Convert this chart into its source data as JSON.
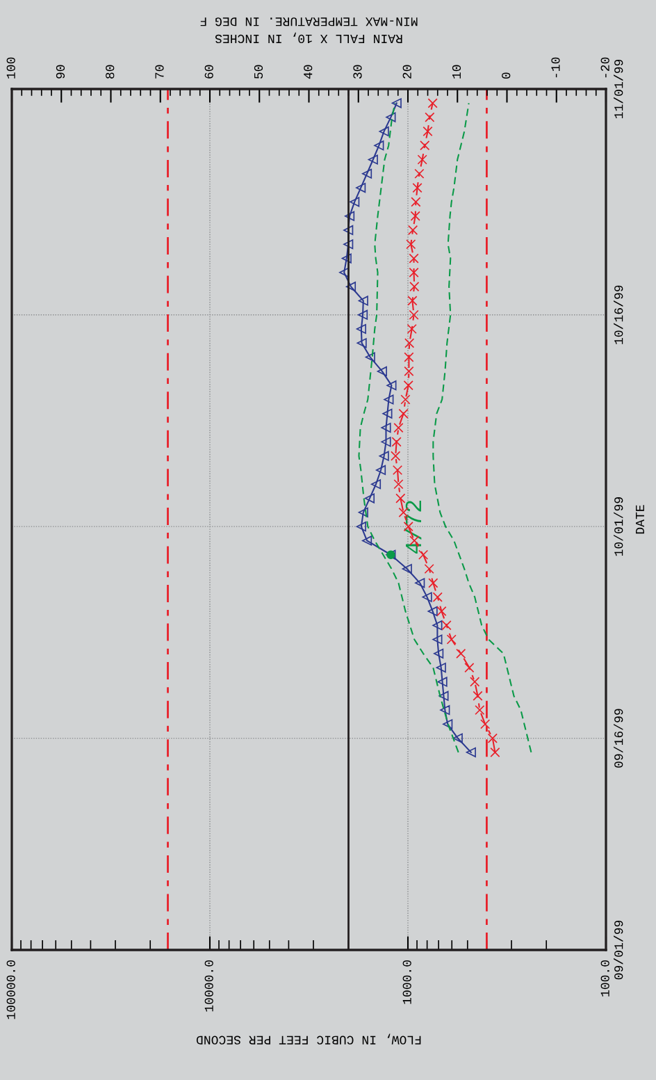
{
  "chart_data": {
    "type": "line",
    "orientation": "horizontal",
    "ylabel": "DATE",
    "xlabel": "FLOW, IN CUBIC FEET PER SECOND",
    "x2label": "RAIN FALL X 10, IN INCHES\nMIN-MAX TEMPERATURE. IN DEG F",
    "x": [
      "1999-09-15",
      "1999-09-16",
      "1999-09-17",
      "1999-09-18",
      "1999-09-19",
      "1999-09-20",
      "1999-09-21",
      "1999-09-22",
      "1999-09-23",
      "1999-09-24",
      "1999-09-25",
      "1999-09-26",
      "1999-09-27",
      "1999-09-28",
      "1999-09-29",
      "1999-09-30",
      "1999-10-01",
      "1999-10-02",
      "1999-10-03",
      "1999-10-04",
      "1999-10-05",
      "1999-10-06",
      "1999-10-07",
      "1999-10-08",
      "1999-10-09",
      "1999-10-10",
      "1999-10-11",
      "1999-10-12",
      "1999-10-13",
      "1999-10-14",
      "1999-10-15",
      "1999-10-16",
      "1999-10-17",
      "1999-10-18",
      "1999-10-19",
      "1999-10-20",
      "1999-10-21",
      "1999-10-22",
      "1999-10-23",
      "1999-10-24",
      "1999-10-25",
      "1999-10-26",
      "1999-10-27",
      "1999-10-28",
      "1999-10-29",
      "1999-10-30",
      "1999-10-31"
    ],
    "series": [
      {
        "color": "#2b3990",
        "marker": "triangle",
        "line_style": "solid",
        "values": [
          480,
          560,
          630,
          650,
          660,
          670,
          680,
          700,
          710,
          710,
          750,
          800,
          870,
          1010,
          1220,
          1610,
          1720,
          1680,
          1560,
          1450,
          1370,
          1320,
          1290,
          1290,
          1270,
          1250,
          1210,
          1350,
          1550,
          1710,
          1720,
          1690,
          1680,
          1940,
          2100,
          2040,
          2000,
          2000,
          1970,
          1860,
          1730,
          1610,
          1500,
          1400,
          1320,
          1220,
          1140
        ]
      },
      {
        "color": "#e8202a",
        "marker": "cross",
        "line_style": "dashed",
        "axis": "x2",
        "values": [
          2.4,
          2.9,
          4.4,
          5.5,
          5.9,
          6.5,
          7.6,
          9.3,
          11.2,
          12.2,
          13.2,
          14.0,
          14.9,
          15.7,
          16.9,
          18.7,
          19.9,
          20.9,
          21.5,
          21.9,
          22.1,
          22.5,
          22.3,
          21.9,
          20.9,
          20.5,
          19.9,
          19.8,
          19.8,
          19.7,
          19.2,
          18.8,
          19.1,
          18.7,
          18.8,
          18.8,
          19.4,
          19.0,
          18.5,
          18.4,
          18.1,
          17.7,
          17.1,
          16.6,
          16.0,
          15.6,
          15.0
        ]
      },
      {
        "color": "#0a9a48",
        "marker": "none",
        "line_style": "dashed",
        "axis": "x2",
        "x": [
          "1999-09-15",
          "1999-09-17",
          "1999-09-19",
          "1999-09-21",
          "1999-09-22",
          "1999-09-23",
          "1999-09-25",
          "1999-09-27",
          "1999-09-28",
          "1999-09-30",
          "1999-10-01",
          "1999-10-03",
          "1999-10-05",
          "1999-10-06",
          "1999-10-08",
          "1999-10-09",
          "1999-10-10",
          "1999-10-13",
          "1999-10-15",
          "1999-10-16",
          "1999-10-19",
          "1999-10-20",
          "1999-10-21",
          "1999-10-23",
          "1999-10-25",
          "1999-10-27",
          "1999-10-28",
          "1999-10-30",
          "1999-10-31"
        ],
        "values": [
          9.8,
          11.9,
          13.5,
          14.9,
          16.9,
          18.7,
          20.5,
          21.9,
          23.3,
          26.7,
          28.1,
          28.9,
          29.5,
          29.9,
          29.6,
          28.9,
          28.1,
          27.2,
          26.7,
          26.3,
          26.1,
          26.5,
          26.7,
          26.1,
          25.4,
          24.7,
          23.9,
          23.2,
          22.6
        ]
      },
      {
        "color": "#0a9a48",
        "marker": "none",
        "line_style": "dashed",
        "axis": "x2",
        "x": [
          "1999-09-15",
          "1999-09-16",
          "1999-09-18",
          "1999-09-19",
          "1999-09-20",
          "1999-09-22",
          "1999-09-23",
          "1999-09-24",
          "1999-09-26",
          "1999-09-27",
          "1999-09-28",
          "1999-09-30",
          "1999-10-01",
          "1999-10-02",
          "1999-10-04",
          "1999-10-06",
          "1999-10-07",
          "1999-10-09",
          "1999-10-10",
          "1999-10-12",
          "1999-10-14",
          "1999-10-16",
          "1999-10-18",
          "1999-10-20",
          "1999-10-21",
          "1999-10-23",
          "1999-10-24",
          "1999-10-25",
          "1999-10-27",
          "1999-10-28",
          "1999-10-29",
          "1999-10-31"
        ],
        "values": [
          -4.9,
          -4.2,
          -2.8,
          -1.4,
          -0.7,
          0.7,
          3.7,
          5.1,
          6.5,
          7.7,
          8.6,
          10.7,
          12.4,
          13.5,
          14.6,
          14.9,
          14.9,
          14.2,
          13.1,
          12.5,
          12.1,
          11.4,
          11.7,
          11.4,
          11.9,
          11.5,
          11.2,
          10.7,
          10.0,
          9.3,
          8.6,
          7.7
        ]
      }
    ],
    "ylim": [
      "1999-09-01",
      "1999-11-01"
    ],
    "yticks": [
      {
        "value": "1999-09-01",
        "label": "09/01/99"
      },
      {
        "value": "1999-09-16",
        "label": "09/16/99"
      },
      {
        "value": "1999-10-01",
        "label": "10/01/99"
      },
      {
        "value": "1999-10-16",
        "label": "10/16/99"
      },
      {
        "value": "1999-11-01",
        "label": "11/01/99"
      }
    ],
    "log": "x",
    "xlim": [
      100000,
      100
    ],
    "xticks": [
      {
        "value": 100,
        "label": "100.0"
      },
      {
        "value": 1000,
        "label": "1000.0"
      },
      {
        "value": 10000,
        "label": "10000.0"
      },
      {
        "value": 100000,
        "label": "100000.0"
      }
    ],
    "x2lim": [
      100,
      -20
    ],
    "x2ticks": [
      -20,
      -10,
      0,
      10,
      20,
      30,
      40,
      50,
      60,
      70,
      80,
      90,
      100
    ],
    "ref_lines": [
      {
        "axis": "x",
        "value": 400,
        "color": "#e8202a",
        "line_style": "dashed"
      },
      {
        "axis": "x",
        "value": 16300,
        "color": "#e8202a",
        "line_style": "dashed"
      },
      {
        "axis": "x2",
        "value": 32,
        "color": "#231f20",
        "line_style": "solid"
      }
    ],
    "annotations": [
      {
        "text": "4/72",
        "x": 1220,
        "y": "1999-09-29"
      }
    ],
    "grid": true,
    "legend": false
  }
}
